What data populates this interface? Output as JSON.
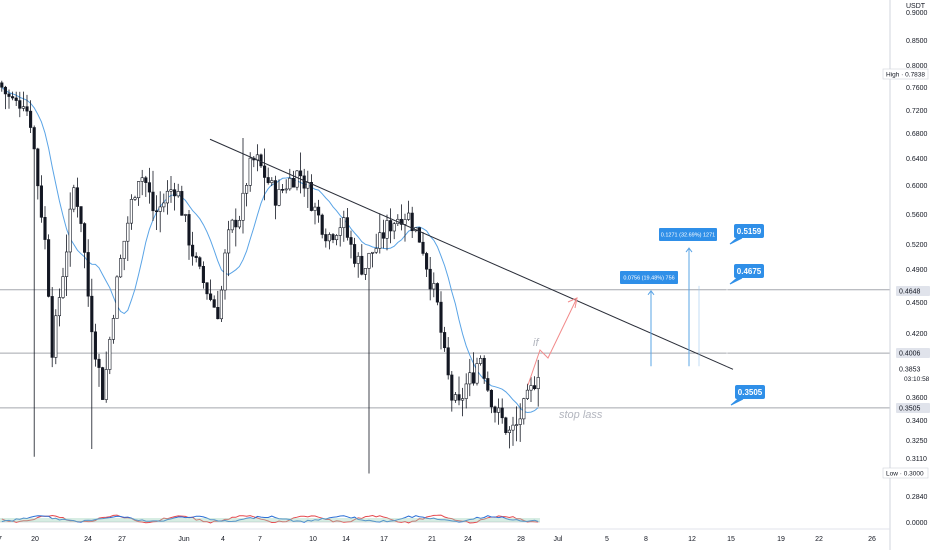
{
  "chart_data": {
    "type": "candlestick",
    "currency": "USDT",
    "y_axis_labels": [
      "0.9000",
      "0.8500",
      "0.8000",
      "0.7600",
      "0.7200",
      "0.6800",
      "0.6400",
      "0.6000",
      "0.5600",
      "0.5200",
      "0.4900",
      "0.4500",
      "0.4200",
      "0.3853",
      "0.3600",
      "0.3400",
      "0.3250",
      "0.3110",
      "0.2840",
      "0.0000"
    ],
    "x_axis_labels": [
      "7",
      "20",
      "24",
      "27",
      "Jun",
      "4",
      "7",
      "10",
      "14",
      "17",
      "21",
      "24",
      "28",
      "Jul",
      "5",
      "8",
      "12",
      "15",
      "19",
      "22",
      "26"
    ],
    "price_badges": [
      {
        "id": "high",
        "text": "High · 0.7838",
        "value": 0.7838
      },
      {
        "id": "h1",
        "text": "0.4648",
        "value": 0.4648
      },
      {
        "id": "h2",
        "text": "0.4006",
        "value": 0.4006
      },
      {
        "id": "last",
        "text": "0.3853",
        "value": 0.3853
      },
      {
        "id": "countdown",
        "text": "03:10:58",
        "value": 0.3795
      },
      {
        "id": "h3",
        "text": "0.3505",
        "value": 0.3505
      },
      {
        "id": "low",
        "text": "Low · 0.3000",
        "value": 0.3
      }
    ],
    "horizontal_lines": [
      0.4648,
      0.4006,
      0.3505
    ],
    "trendline": {
      "from": {
        "date": "2021-06-03",
        "price": 0.67
      },
      "to": {
        "date": "2021-07-15",
        "price": 0.385
      }
    },
    "targets": [
      {
        "id": "t1",
        "text": "0.4675",
        "value": 0.4675
      },
      {
        "id": "t2",
        "text": "0.5159",
        "value": 0.5159
      },
      {
        "id": "sl",
        "text": "0.3505",
        "value": 0.3505
      }
    ],
    "measure_labels": [
      {
        "id": "m1",
        "text": "0.0756 (19.48%) 756",
        "from": 0.388,
        "to": 0.4636
      },
      {
        "id": "m2",
        "text": "0.1271 (32.69%) 1271",
        "from": 0.388,
        "to": 0.5151
      }
    ],
    "annotations": [
      {
        "id": "if",
        "text": "if"
      },
      {
        "id": "stop",
        "text": "stop lass"
      }
    ],
    "ohlc_note": "Daily-style candles, Daily May 17 2021 - Jun 29 2021"
  }
}
